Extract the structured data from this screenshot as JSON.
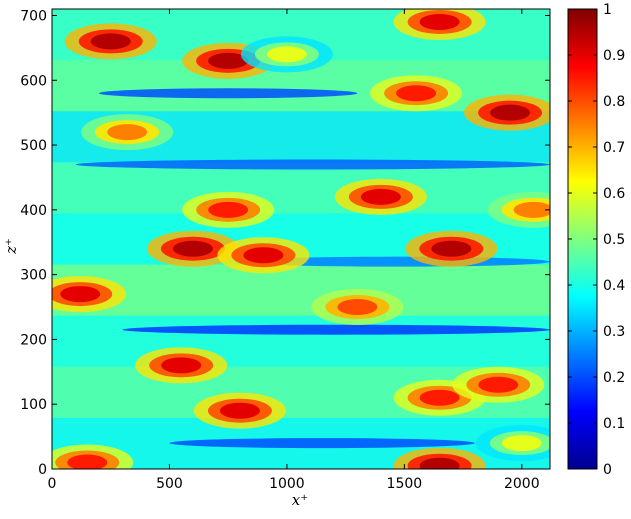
{
  "chart_data": {
    "type": "heatmap",
    "title": "",
    "xlabel": "x⁺",
    "ylabel": "z⁺",
    "xlim": [
      0,
      2120
    ],
    "ylim": [
      0,
      710
    ],
    "xticks": [
      0,
      500,
      1000,
      1500,
      2000
    ],
    "yticks": [
      0,
      100,
      200,
      300,
      400,
      500,
      600,
      700
    ],
    "colorbar": {
      "colormap": "jet",
      "range": [
        0,
        1
      ],
      "ticks": [
        0,
        0.1,
        0.2,
        0.3,
        0.4,
        0.5,
        0.6,
        0.7,
        0.8,
        0.9,
        1
      ]
    },
    "field_description_hint": "streaky field: elongated high-value patches on mid-value background",
    "hot_spots": [
      {
        "x": 250,
        "z": 660,
        "value": 0.95
      },
      {
        "x": 750,
        "z": 630,
        "value": 0.95
      },
      {
        "x": 1000,
        "z": 640,
        "value": 0.6
      },
      {
        "x": 1650,
        "z": 690,
        "value": 0.9
      },
      {
        "x": 1950,
        "z": 550,
        "value": 0.95
      },
      {
        "x": 1550,
        "z": 580,
        "value": 0.85
      },
      {
        "x": 320,
        "z": 520,
        "value": 0.75
      },
      {
        "x": 750,
        "z": 400,
        "value": 0.85
      },
      {
        "x": 1400,
        "z": 420,
        "value": 0.9
      },
      {
        "x": 1700,
        "z": 340,
        "value": 0.95
      },
      {
        "x": 600,
        "z": 340,
        "value": 0.95
      },
      {
        "x": 900,
        "z": 330,
        "value": 0.9
      },
      {
        "x": 120,
        "z": 270,
        "value": 0.9
      },
      {
        "x": 1300,
        "z": 250,
        "value": 0.8
      },
      {
        "x": 550,
        "z": 160,
        "value": 0.9
      },
      {
        "x": 800,
        "z": 90,
        "value": 0.9
      },
      {
        "x": 1650,
        "z": 110,
        "value": 0.85
      },
      {
        "x": 1900,
        "z": 130,
        "value": 0.85
      },
      {
        "x": 1650,
        "z": 5,
        "value": 0.95
      },
      {
        "x": 150,
        "z": 10,
        "value": 0.85
      },
      {
        "x": 2050,
        "z": 400,
        "value": 0.75
      },
      {
        "x": 2000,
        "z": 40,
        "value": 0.6
      }
    ],
    "cold_streaks": [
      {
        "z": 580,
        "x_from": 200,
        "x_to": 1300,
        "value": 0.2
      },
      {
        "z": 470,
        "x_from": 100,
        "x_to": 2120,
        "value": 0.22
      },
      {
        "z": 320,
        "x_from": 800,
        "x_to": 2120,
        "value": 0.25
      },
      {
        "z": 215,
        "x_from": 300,
        "x_to": 2120,
        "value": 0.18
      },
      {
        "z": 40,
        "x_from": 500,
        "x_to": 1800,
        "value": 0.2
      }
    ]
  }
}
